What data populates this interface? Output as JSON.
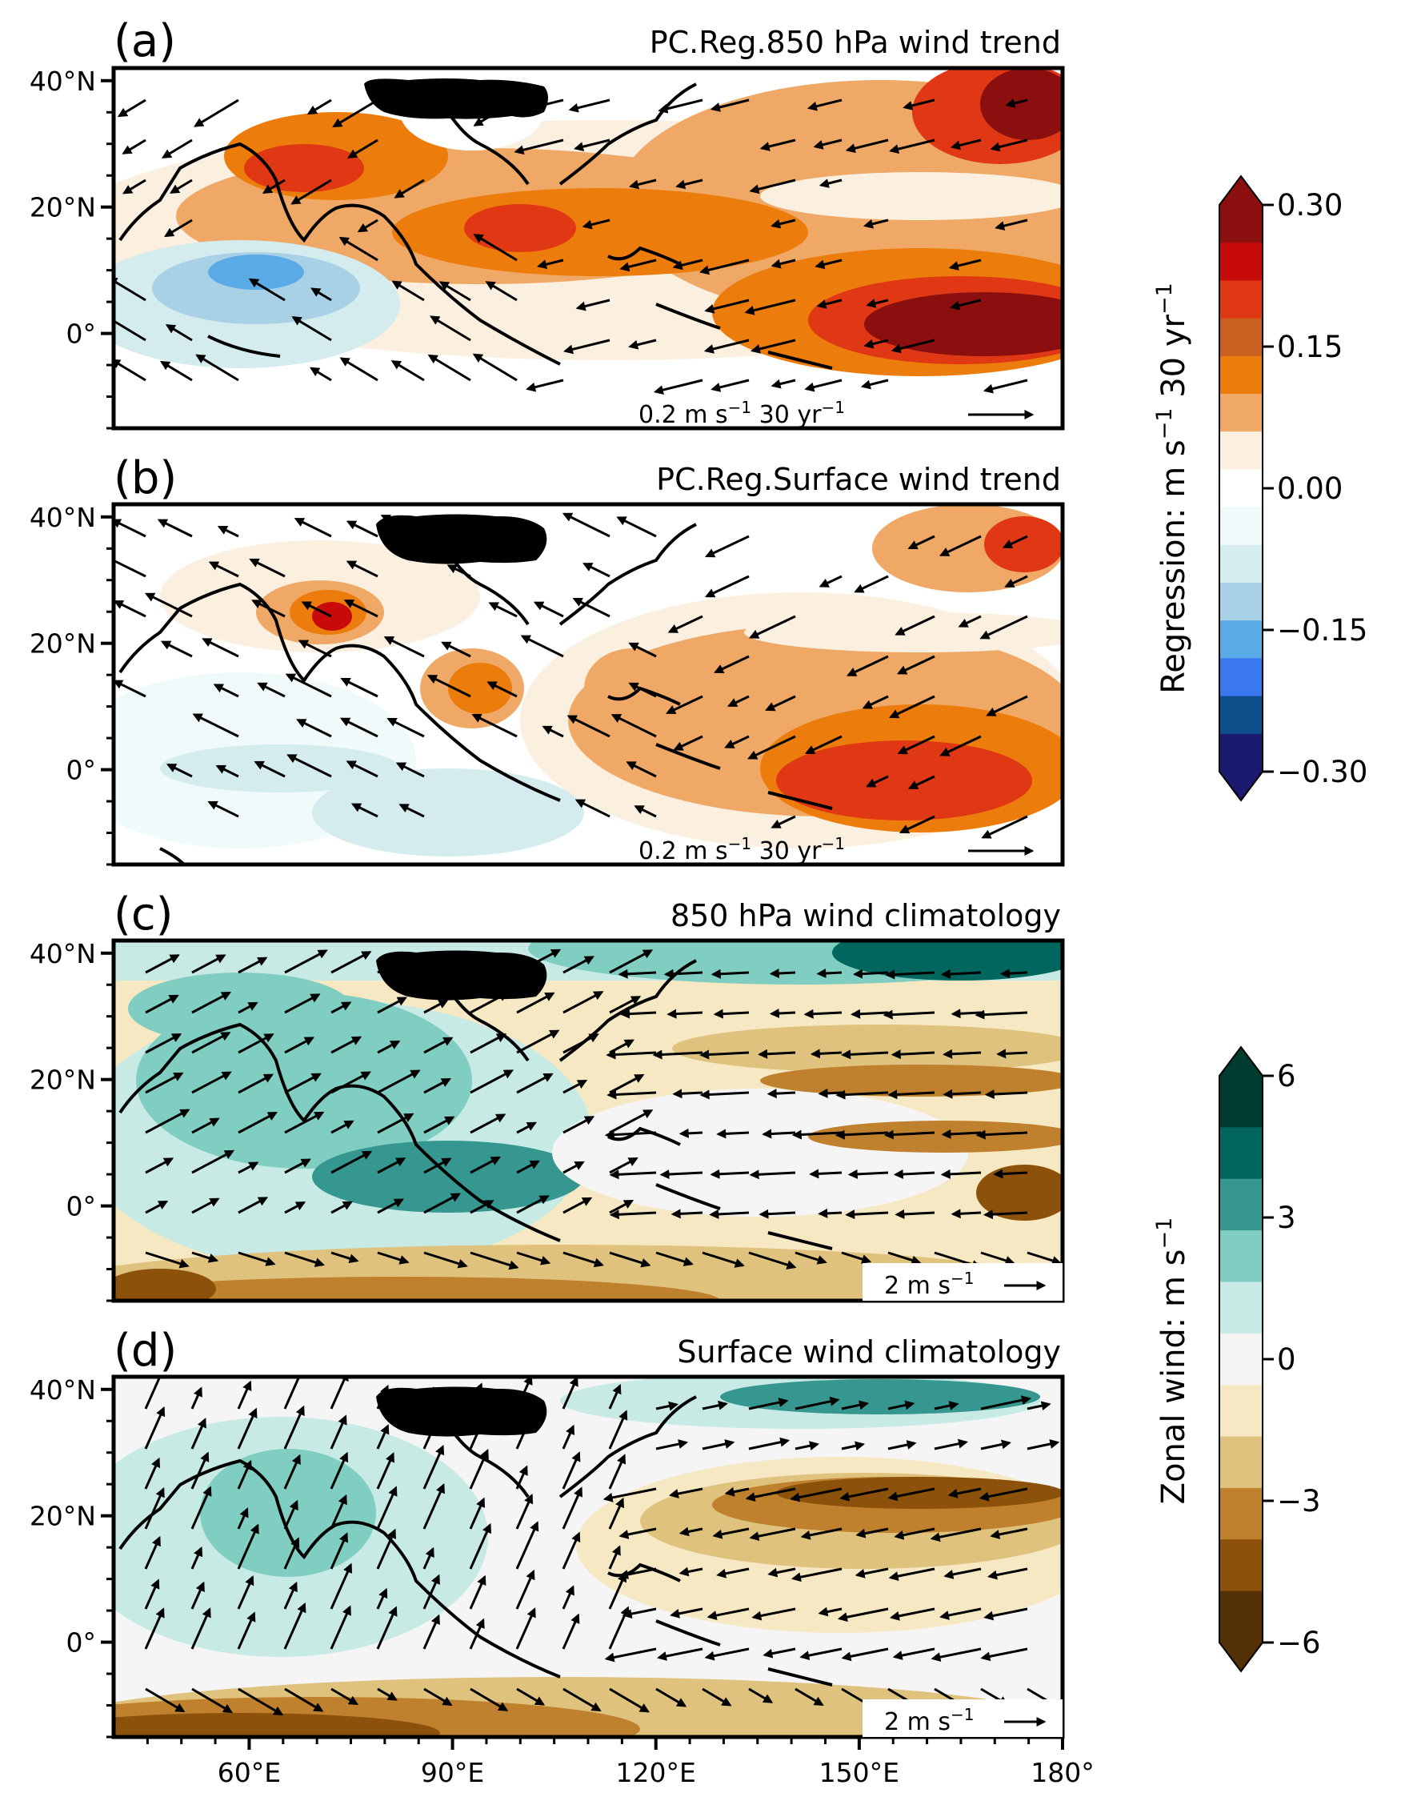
{
  "colors": {
    "frame": "#000000",
    "land_mask": "#000000",
    "reg_scale": [
      "#1a1a6e",
      "#0d4f8b",
      "#3a78f0",
      "#5aaae6",
      "#a9d1e5",
      "#d4ecee",
      "#f1fafa",
      "#ffffff",
      "#fbefdf",
      "#efa865",
      "#ec7c0c",
      "#c96022",
      "#e03814",
      "#c80a0a",
      "#8b0f0f"
    ],
    "zonal_scale": [
      "#543005",
      "#8c510a",
      "#bf812d",
      "#dfc27d",
      "#f6e8c3",
      "#f5f5f5",
      "#c7eae5",
      "#80cdc1",
      "#35978f",
      "#01665e",
      "#003c30"
    ]
  },
  "chart_data": [
    {
      "type": "heatmap",
      "panel_label": "(a)",
      "title": "PC.Reg.850 hPa wind trend",
      "field": "regression",
      "xlim": [
        40,
        180
      ],
      "ylim": [
        -15,
        42
      ],
      "yticks": [
        "40°N",
        "20°N",
        "0°"
      ],
      "ytick_values": [
        40,
        20,
        0
      ],
      "xticks": [],
      "vector_key": {
        "base": "0.2 m s",
        "exp1": "−1",
        "mid": " 30 yr",
        "exp2": "−1"
      }
    },
    {
      "type": "heatmap",
      "panel_label": "(b)",
      "title": "PC.Reg.Surface wind trend",
      "field": "regression",
      "xlim": [
        40,
        180
      ],
      "ylim": [
        -15,
        42
      ],
      "yticks": [
        "40°N",
        "20°N",
        "0°"
      ],
      "ytick_values": [
        40,
        20,
        0
      ],
      "xticks": [],
      "vector_key": {
        "base": "0.2 m s",
        "exp1": "−1",
        "mid": " 30 yr",
        "exp2": "−1"
      }
    },
    {
      "type": "heatmap",
      "panel_label": "(c)",
      "title": "850 hPa wind climatology",
      "field": "zonal",
      "xlim": [
        40,
        180
      ],
      "ylim": [
        -15,
        42
      ],
      "yticks": [
        "40°N",
        "20°N",
        "0°"
      ],
      "ytick_values": [
        40,
        20,
        0
      ],
      "xticks": [],
      "vector_key": {
        "base": "2 m s",
        "exp1": "−1",
        "mid": "",
        "exp2": ""
      }
    },
    {
      "type": "heatmap",
      "panel_label": "(d)",
      "title": "Surface wind climatology",
      "field": "zonal",
      "xlim": [
        40,
        180
      ],
      "ylim": [
        -15,
        42
      ],
      "yticks": [
        "40°N",
        "20°N",
        "0°"
      ],
      "ytick_values": [
        40,
        20,
        0
      ],
      "xticks": [
        "60°E",
        "90°E",
        "120°E",
        "150°E",
        "180°"
      ],
      "xtick_values": [
        60,
        90,
        120,
        150,
        180
      ],
      "vector_key": {
        "base": "2 m s",
        "exp1": "−1",
        "mid": "",
        "exp2": ""
      }
    }
  ],
  "colorbars": [
    {
      "label_base": "Regression: m s",
      "label_exp1": "−1",
      "label_mid": " 30 yr",
      "label_exp2": "−1",
      "ticks": [
        "0.30",
        "0.15",
        "0.00",
        "−0.15",
        "−0.30"
      ],
      "tick_values": [
        0.3,
        0.15,
        0.0,
        -0.15,
        -0.3
      ],
      "range": [
        -0.3,
        0.3
      ]
    },
    {
      "label_base": "Zonal wind: m s",
      "label_exp1": "−1",
      "label_mid": "",
      "label_exp2": "",
      "ticks": [
        "6",
        "3",
        "0",
        "−3",
        "−6"
      ],
      "tick_values": [
        6,
        3,
        0,
        -3,
        -6
      ],
      "range": [
        -6,
        6
      ]
    }
  ]
}
